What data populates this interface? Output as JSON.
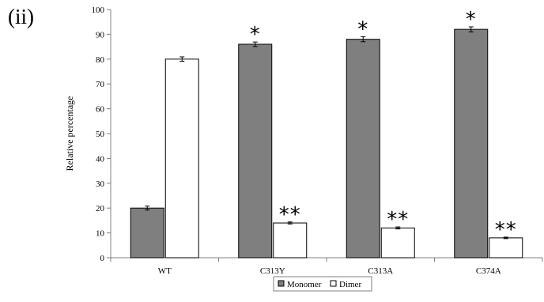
{
  "panel_label": "(ii)",
  "colors": {
    "monomer": "#7f7f7f",
    "dimer": "#ffffff",
    "axis": "#808080",
    "stroke": "#000000"
  },
  "chart_data": {
    "type": "bar",
    "ylabel": "Relative percentage",
    "xlabel": "",
    "ylim": [
      0,
      100
    ],
    "yticks": [
      "0",
      "10",
      "20",
      "30",
      "40",
      "50",
      "60",
      "70",
      "80",
      "90",
      "100"
    ],
    "categories": [
      "WT",
      "C313Y",
      "C313A",
      "C374A"
    ],
    "series": [
      {
        "name": "Monomer",
        "values": [
          20,
          86,
          88,
          92
        ],
        "errors": [
          0.8,
          0.9,
          1.0,
          1.0
        ],
        "annotations": [
          "",
          "*",
          "*",
          "*"
        ]
      },
      {
        "name": "Dimer",
        "values": [
          80,
          14,
          12,
          8
        ],
        "errors": [
          0.9,
          0.4,
          0.4,
          0.3
        ],
        "annotations": [
          "",
          "**",
          "**",
          "**"
        ]
      }
    ],
    "grid": false,
    "legend_position": "bottom-center"
  }
}
